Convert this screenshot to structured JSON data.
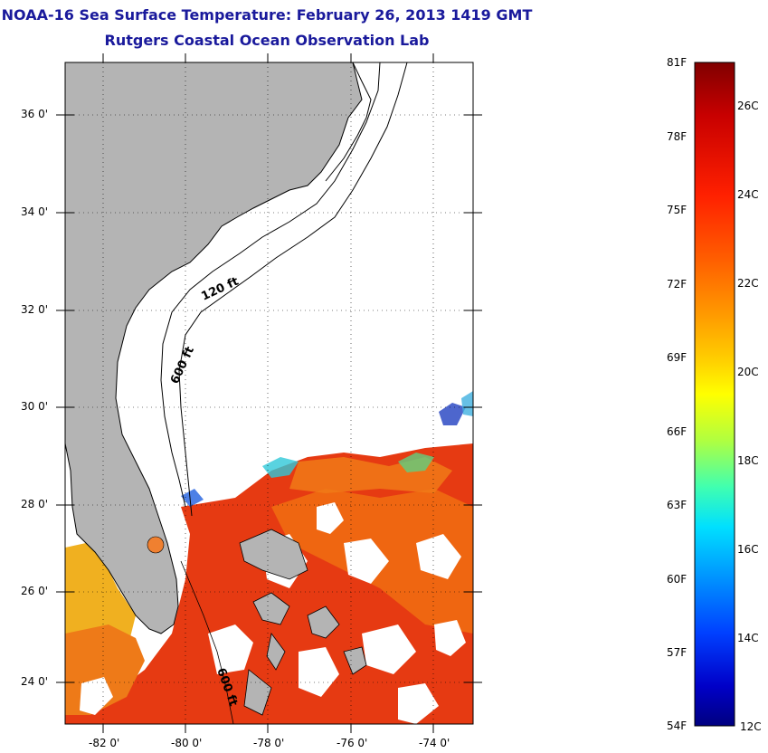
{
  "header": {
    "title": "NOAA-16 Sea Surface Temperature:  February 26, 2013 1419 GMT",
    "subtitle": "Rutgers Coastal Ocean Observation Lab"
  },
  "map": {
    "lat_labels": [
      "36 0'",
      "34 0'",
      "32 0'",
      "30 0'",
      "28 0'",
      "26 0'",
      "24 0'"
    ],
    "lon_labels": [
      "-82 0'",
      "-80 0'",
      "-78 0'",
      "-76 0'",
      "-74 0'"
    ],
    "contours": [
      "120 ft",
      "600 ft",
      "600 ft"
    ],
    "colors": {
      "land": "#b4b4b4",
      "cloud": "#ffffff",
      "sst_warm": "#e03010",
      "sst_orange": "#ee6a10",
      "sst_yellow": "#f0c020",
      "grid": "#000000"
    }
  },
  "colorbar": {
    "fahrenheit": [
      "81F",
      "78F",
      "75F",
      "72F",
      "69F",
      "66F",
      "63F",
      "60F",
      "57F",
      "54F"
    ],
    "celsius": [
      "26C",
      "24C",
      "22C",
      "20C",
      "18C",
      "16C",
      "14C",
      "12C"
    ],
    "gradient": [
      "#800000",
      "#c80000",
      "#ff2000",
      "#ff6000",
      "#ff9a00",
      "#ffd000",
      "#ffff00",
      "#b0ff40",
      "#40ffb0",
      "#00e0ff",
      "#0090ff",
      "#0040ff",
      "#0000c8",
      "#000080"
    ]
  }
}
